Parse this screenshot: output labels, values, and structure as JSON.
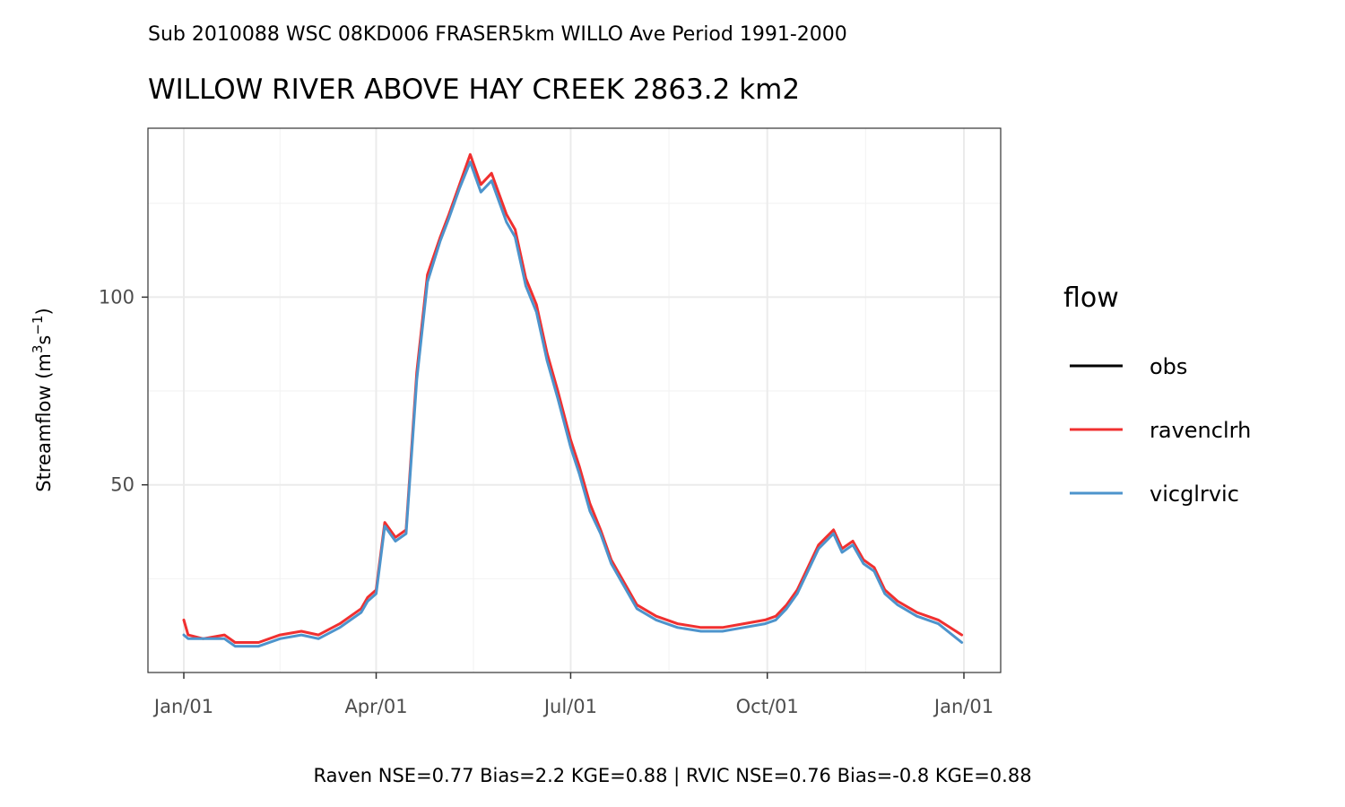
{
  "chart_data": {
    "type": "line",
    "subtitle": "Sub 2010088 WSC 08KD006 FRASER5km WILLO Ave Period 1991-2000",
    "title": "WILLOW RIVER ABOVE HAY CREEK 2863.2 km2",
    "ylabel": "Streamflow (m",
    "ylabel_sup1": "3",
    "ylabel_mid": "s",
    "ylabel_sup2": "−1",
    "ylabel_end": ")",
    "caption": "Raven NSE=0.77 Bias=2.2 KGE=0.88 | RVIC NSE=0.76 Bias=-0.8 KGE=0.88",
    "xlim": [
      "Jan/01",
      "Jan/01"
    ],
    "x_ticks": [
      "Jan/01",
      "Apr/01",
      "Jul/01",
      "Oct/01",
      "Jan/01"
    ],
    "ylim": [
      0,
      145
    ],
    "y_ticks": [
      50,
      100
    ],
    "grid": true,
    "legend": {
      "title": "flow",
      "position": "right",
      "entries": [
        {
          "name": "obs",
          "color": "#000000"
        },
        {
          "name": "ravenclrh",
          "color": "#f03030"
        },
        {
          "name": "vicglrvic",
          "color": "#4d94cc"
        }
      ]
    },
    "series": [
      {
        "name": "ravenclrh",
        "color": "#f03030",
        "x": [
          "Jan/01",
          "Jan/03",
          "Jan/10",
          "Jan/20",
          "Jan/25",
          "Feb/05",
          "Feb/15",
          "Feb/25",
          "Mar/05",
          "Mar/15",
          "Mar/25",
          "Mar/28",
          "Apr/01",
          "Apr/05",
          "Apr/10",
          "Apr/15",
          "Apr/20",
          "Apr/25",
          "May/01",
          "May/05",
          "May/10",
          "May/15",
          "May/20",
          "May/25",
          "Jun/01",
          "Jun/05",
          "Jun/10",
          "Jun/15",
          "Jun/20",
          "Jun/25",
          "Jul/01",
          "Jul/05",
          "Jul/10",
          "Jul/15",
          "Jul/20",
          "Jul/25",
          "Aug/01",
          "Aug/10",
          "Aug/20",
          "Aug/31",
          "Sep/10",
          "Sep/20",
          "Sep/30",
          "Oct/05",
          "Oct/10",
          "Oct/15",
          "Oct/20",
          "Oct/25",
          "Nov/01",
          "Nov/05",
          "Nov/10",
          "Nov/15",
          "Nov/20",
          "Nov/25",
          "Dec/01",
          "Dec/10",
          "Dec/20",
          "Dec/31"
        ],
        "values": [
          14,
          10,
          9,
          10,
          8,
          8,
          10,
          11,
          10,
          13,
          17,
          20,
          22,
          40,
          36,
          38,
          80,
          106,
          116,
          122,
          130,
          138,
          130,
          133,
          122,
          118,
          105,
          98,
          85,
          75,
          62,
          55,
          45,
          38,
          30,
          25,
          18,
          15,
          13,
          12,
          12,
          13,
          14,
          15,
          18,
          22,
          28,
          34,
          38,
          33,
          35,
          30,
          28,
          22,
          19,
          16,
          14,
          10
        ]
      },
      {
        "name": "vicglrvic",
        "color": "#4d94cc",
        "x": [
          "Jan/01",
          "Jan/03",
          "Jan/10",
          "Jan/20",
          "Jan/25",
          "Feb/05",
          "Feb/15",
          "Feb/25",
          "Mar/05",
          "Mar/15",
          "Mar/25",
          "Mar/28",
          "Apr/01",
          "Apr/05",
          "Apr/10",
          "Apr/15",
          "Apr/20",
          "Apr/25",
          "May/01",
          "May/05",
          "May/10",
          "May/15",
          "May/20",
          "May/25",
          "Jun/01",
          "Jun/05",
          "Jun/10",
          "Jun/15",
          "Jun/20",
          "Jun/25",
          "Jul/01",
          "Jul/05",
          "Jul/10",
          "Jul/15",
          "Jul/20",
          "Jul/25",
          "Aug/01",
          "Aug/10",
          "Aug/20",
          "Aug/31",
          "Sep/10",
          "Sep/20",
          "Sep/30",
          "Oct/05",
          "Oct/10",
          "Oct/15",
          "Oct/20",
          "Oct/25",
          "Nov/01",
          "Nov/05",
          "Nov/10",
          "Nov/15",
          "Nov/20",
          "Nov/25",
          "Dec/01",
          "Dec/10",
          "Dec/20",
          "Dec/31"
        ],
        "values": [
          10,
          9,
          9,
          9,
          7,
          7,
          9,
          10,
          9,
          12,
          16,
          19,
          21,
          39,
          35,
          37,
          78,
          104,
          115,
          121,
          129,
          136,
          128,
          131,
          120,
          116,
          103,
          96,
          83,
          73,
          60,
          53,
          43,
          37,
          29,
          24,
          17,
          14,
          12,
          11,
          11,
          12,
          13,
          14,
          17,
          21,
          27,
          33,
          37,
          32,
          34,
          29,
          27,
          21,
          18,
          15,
          13,
          8
        ]
      },
      {
        "name": "obs",
        "color": "#000000",
        "x": [],
        "values": []
      }
    ]
  }
}
